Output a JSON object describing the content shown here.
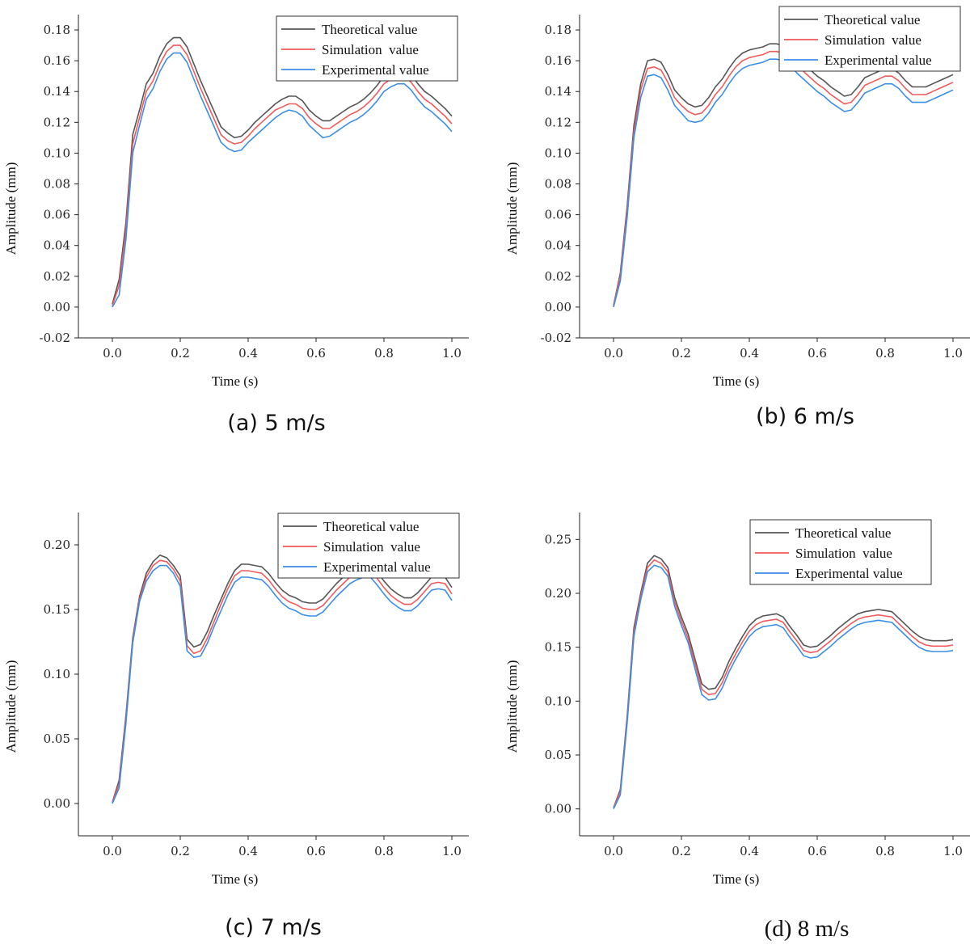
{
  "colors": {
    "theoretical": "#555555",
    "simulation": "#f05a5a",
    "experimental": "#3a8ee6"
  },
  "chart_data": [
    {
      "type": "line",
      "caption": "(a) 5 m/s",
      "xlabel": "Time (s)",
      "ylabel": "Amplitude (mm)",
      "xlim": [
        -0.1,
        1.05
      ],
      "ylim": [
        -0.02,
        0.19
      ],
      "xticks": [
        0.0,
        0.2,
        0.4,
        0.6,
        0.8,
        1.0
      ],
      "xtick_labels": [
        "0.0",
        "0.2",
        "0.4",
        "0.6",
        "0.8",
        "1.0"
      ],
      "yticks": [
        -0.02,
        0.0,
        0.02,
        0.04,
        0.06,
        0.08,
        0.1,
        0.12,
        0.14,
        0.16,
        0.18
      ],
      "ytick_labels": [
        "-0.02",
        "0.00",
        "0.02",
        "0.04",
        "0.06",
        "0.08",
        "0.10",
        "0.12",
        "0.14",
        "0.16",
        "0.18"
      ],
      "legend": "top-right",
      "x": [
        0.0,
        0.02,
        0.04,
        0.06,
        0.08,
        0.1,
        0.12,
        0.14,
        0.16,
        0.18,
        0.2,
        0.22,
        0.24,
        0.26,
        0.28,
        0.3,
        0.32,
        0.34,
        0.36,
        0.38,
        0.4,
        0.42,
        0.44,
        0.46,
        0.48,
        0.5,
        0.52,
        0.54,
        0.56,
        0.58,
        0.6,
        0.62,
        0.64,
        0.66,
        0.68,
        0.7,
        0.72,
        0.74,
        0.76,
        0.78,
        0.8,
        0.82,
        0.84,
        0.86,
        0.88,
        0.9,
        0.92,
        0.94,
        0.96,
        0.98,
        1.0
      ],
      "series": [
        {
          "name": "Theoretical value",
          "values": [
            0.002,
            0.018,
            0.055,
            0.112,
            0.128,
            0.145,
            0.152,
            0.163,
            0.171,
            0.175,
            0.175,
            0.169,
            0.158,
            0.147,
            0.137,
            0.127,
            0.117,
            0.113,
            0.11,
            0.111,
            0.115,
            0.12,
            0.124,
            0.128,
            0.132,
            0.135,
            0.137,
            0.137,
            0.134,
            0.128,
            0.124,
            0.121,
            0.121,
            0.124,
            0.127,
            0.13,
            0.132,
            0.135,
            0.139,
            0.144,
            0.15,
            0.153,
            0.155,
            0.155,
            0.151,
            0.145,
            0.14,
            0.137,
            0.133,
            0.129,
            0.124
          ]
        },
        {
          "name": "Simulation  value",
          "values": [
            0.001,
            0.014,
            0.05,
            0.106,
            0.123,
            0.14,
            0.147,
            0.158,
            0.166,
            0.17,
            0.17,
            0.164,
            0.153,
            0.142,
            0.132,
            0.122,
            0.112,
            0.108,
            0.106,
            0.107,
            0.111,
            0.116,
            0.12,
            0.124,
            0.128,
            0.13,
            0.132,
            0.132,
            0.129,
            0.123,
            0.119,
            0.116,
            0.116,
            0.119,
            0.122,
            0.125,
            0.127,
            0.13,
            0.134,
            0.139,
            0.145,
            0.148,
            0.15,
            0.15,
            0.146,
            0.14,
            0.135,
            0.132,
            0.128,
            0.124,
            0.119
          ]
        },
        {
          "name": "Experimental value",
          "values": [
            0.0,
            0.008,
            0.044,
            0.1,
            0.118,
            0.135,
            0.142,
            0.153,
            0.161,
            0.165,
            0.165,
            0.159,
            0.148,
            0.137,
            0.127,
            0.117,
            0.107,
            0.103,
            0.101,
            0.102,
            0.107,
            0.111,
            0.115,
            0.119,
            0.123,
            0.126,
            0.128,
            0.127,
            0.124,
            0.118,
            0.114,
            0.11,
            0.111,
            0.114,
            0.117,
            0.12,
            0.122,
            0.125,
            0.129,
            0.134,
            0.14,
            0.143,
            0.145,
            0.145,
            0.141,
            0.135,
            0.13,
            0.127,
            0.123,
            0.119,
            0.114
          ]
        }
      ]
    },
    {
      "type": "line",
      "caption": "(b) 6 m/s",
      "xlabel": "Time (s)",
      "ylabel": "Amplitude (mm)",
      "xlim": [
        -0.1,
        1.05
      ],
      "ylim": [
        -0.02,
        0.19
      ],
      "xticks": [
        0.0,
        0.2,
        0.4,
        0.6,
        0.8,
        1.0
      ],
      "xtick_labels": [
        "0.0",
        "0.2",
        "0.4",
        "0.6",
        "0.8",
        "1.0"
      ],
      "yticks": [
        -0.02,
        0.0,
        0.02,
        0.04,
        0.06,
        0.08,
        0.1,
        0.12,
        0.14,
        0.16,
        0.18
      ],
      "ytick_labels": [
        "-0.02",
        "0.00",
        "0.02",
        "0.04",
        "0.06",
        "0.08",
        "0.10",
        "0.12",
        "0.14",
        "0.16",
        "0.18"
      ],
      "legend": "top-right",
      "x": [
        0.0,
        0.02,
        0.04,
        0.06,
        0.08,
        0.1,
        0.12,
        0.14,
        0.16,
        0.18,
        0.2,
        0.22,
        0.24,
        0.26,
        0.28,
        0.3,
        0.32,
        0.34,
        0.36,
        0.38,
        0.4,
        0.42,
        0.44,
        0.46,
        0.48,
        0.5,
        0.52,
        0.54,
        0.56,
        0.58,
        0.6,
        0.62,
        0.64,
        0.66,
        0.68,
        0.7,
        0.72,
        0.74,
        0.76,
        0.78,
        0.8,
        0.82,
        0.84,
        0.86,
        0.88,
        0.9,
        0.92,
        0.94,
        0.96,
        0.98,
        1.0
      ],
      "series": [
        {
          "name": "Theoretical value",
          "values": [
            0.001,
            0.022,
            0.065,
            0.118,
            0.145,
            0.16,
            0.161,
            0.159,
            0.151,
            0.141,
            0.136,
            0.132,
            0.13,
            0.131,
            0.136,
            0.143,
            0.148,
            0.155,
            0.161,
            0.165,
            0.167,
            0.168,
            0.169,
            0.171,
            0.171,
            0.17,
            0.167,
            0.162,
            0.158,
            0.154,
            0.15,
            0.147,
            0.143,
            0.14,
            0.137,
            0.138,
            0.143,
            0.149,
            0.151,
            0.153,
            0.155,
            0.155,
            0.152,
            0.147,
            0.143,
            0.143,
            0.143,
            0.145,
            0.147,
            0.149,
            0.151
          ]
        },
        {
          "name": "Simulation  value",
          "values": [
            0.001,
            0.02,
            0.062,
            0.114,
            0.141,
            0.155,
            0.156,
            0.154,
            0.146,
            0.136,
            0.131,
            0.127,
            0.125,
            0.126,
            0.131,
            0.138,
            0.143,
            0.15,
            0.156,
            0.16,
            0.162,
            0.163,
            0.164,
            0.166,
            0.166,
            0.165,
            0.162,
            0.157,
            0.153,
            0.149,
            0.145,
            0.142,
            0.138,
            0.135,
            0.132,
            0.133,
            0.138,
            0.144,
            0.146,
            0.148,
            0.15,
            0.15,
            0.147,
            0.142,
            0.138,
            0.138,
            0.138,
            0.14,
            0.142,
            0.144,
            0.146
          ]
        },
        {
          "name": "Experimental value",
          "values": [
            0.0,
            0.017,
            0.058,
            0.11,
            0.136,
            0.15,
            0.151,
            0.149,
            0.141,
            0.131,
            0.126,
            0.121,
            0.12,
            0.121,
            0.126,
            0.133,
            0.138,
            0.145,
            0.151,
            0.155,
            0.157,
            0.158,
            0.159,
            0.161,
            0.161,
            0.16,
            0.157,
            0.152,
            0.148,
            0.144,
            0.14,
            0.137,
            0.133,
            0.13,
            0.127,
            0.128,
            0.133,
            0.139,
            0.141,
            0.143,
            0.145,
            0.145,
            0.142,
            0.137,
            0.133,
            0.133,
            0.133,
            0.135,
            0.137,
            0.139,
            0.141
          ]
        }
      ]
    },
    {
      "type": "line",
      "caption": "(c) 7 m/s",
      "xlabel": "Time (s)",
      "ylabel": "Amplitude (mm)",
      "xlim": [
        -0.1,
        1.05
      ],
      "ylim": [
        -0.025,
        0.225
      ],
      "xticks": [
        0.0,
        0.2,
        0.4,
        0.6,
        0.8,
        1.0
      ],
      "xtick_labels": [
        "0.0",
        "0.2",
        "0.4",
        "0.6",
        "0.8",
        "1.0"
      ],
      "yticks": [
        0.0,
        0.05,
        0.1,
        0.15,
        0.2
      ],
      "ytick_labels": [
        "0.00",
        "0.05",
        "0.10",
        "0.15",
        "0.20"
      ],
      "legend": "top-right",
      "x": [
        0.0,
        0.02,
        0.04,
        0.06,
        0.08,
        0.1,
        0.12,
        0.14,
        0.16,
        0.18,
        0.2,
        0.22,
        0.24,
        0.26,
        0.28,
        0.3,
        0.32,
        0.34,
        0.36,
        0.38,
        0.4,
        0.42,
        0.44,
        0.46,
        0.48,
        0.5,
        0.52,
        0.54,
        0.56,
        0.58,
        0.6,
        0.62,
        0.64,
        0.66,
        0.68,
        0.7,
        0.72,
        0.74,
        0.76,
        0.78,
        0.8,
        0.82,
        0.84,
        0.86,
        0.88,
        0.9,
        0.92,
        0.94,
        0.96,
        0.98,
        1.0
      ],
      "series": [
        {
          "name": "Theoretical value",
          "values": [
            0.001,
            0.018,
            0.068,
            0.128,
            0.16,
            0.178,
            0.187,
            0.192,
            0.19,
            0.184,
            0.176,
            0.127,
            0.121,
            0.123,
            0.133,
            0.146,
            0.158,
            0.17,
            0.18,
            0.185,
            0.185,
            0.184,
            0.183,
            0.178,
            0.171,
            0.165,
            0.161,
            0.159,
            0.156,
            0.155,
            0.155,
            0.158,
            0.164,
            0.17,
            0.175,
            0.18,
            0.183,
            0.186,
            0.185,
            0.179,
            0.172,
            0.166,
            0.162,
            0.159,
            0.159,
            0.163,
            0.169,
            0.175,
            0.176,
            0.175,
            0.167
          ]
        },
        {
          "name": "Simulation  value",
          "values": [
            0.001,
            0.015,
            0.065,
            0.126,
            0.158,
            0.175,
            0.184,
            0.188,
            0.187,
            0.181,
            0.172,
            0.122,
            0.116,
            0.118,
            0.128,
            0.141,
            0.154,
            0.166,
            0.176,
            0.18,
            0.18,
            0.179,
            0.178,
            0.173,
            0.166,
            0.16,
            0.156,
            0.154,
            0.151,
            0.15,
            0.15,
            0.153,
            0.159,
            0.165,
            0.17,
            0.175,
            0.178,
            0.18,
            0.18,
            0.174,
            0.167,
            0.161,
            0.157,
            0.154,
            0.154,
            0.158,
            0.164,
            0.17,
            0.171,
            0.17,
            0.162
          ]
        },
        {
          "name": "Experimental value",
          "values": [
            0.0,
            0.012,
            0.062,
            0.124,
            0.156,
            0.172,
            0.18,
            0.184,
            0.184,
            0.178,
            0.168,
            0.118,
            0.113,
            0.114,
            0.124,
            0.137,
            0.149,
            0.161,
            0.171,
            0.175,
            0.175,
            0.174,
            0.173,
            0.168,
            0.161,
            0.155,
            0.151,
            0.149,
            0.146,
            0.145,
            0.145,
            0.148,
            0.154,
            0.16,
            0.165,
            0.17,
            0.173,
            0.175,
            0.175,
            0.169,
            0.162,
            0.156,
            0.152,
            0.149,
            0.149,
            0.153,
            0.159,
            0.165,
            0.166,
            0.165,
            0.157
          ]
        }
      ]
    },
    {
      "type": "line",
      "caption": "(d) 8 m/s",
      "xlabel": "Time (s)",
      "ylabel": "Amplitude (mm)",
      "xlim": [
        -0.1,
        1.05
      ],
      "ylim": [
        -0.025,
        0.275
      ],
      "xticks": [
        0.0,
        0.2,
        0.4,
        0.6,
        0.8,
        1.0
      ],
      "xtick_labels": [
        "0.0",
        "0.2",
        "0.4",
        "0.6",
        "0.8",
        "1.0"
      ],
      "yticks": [
        0.0,
        0.05,
        0.1,
        0.15,
        0.2,
        0.25
      ],
      "ytick_labels": [
        "0.00",
        "0.05",
        "0.10",
        "0.15",
        "0.20",
        "0.25"
      ],
      "legend": "top-right",
      "x": [
        0.0,
        0.02,
        0.04,
        0.06,
        0.08,
        0.1,
        0.12,
        0.14,
        0.16,
        0.18,
        0.2,
        0.22,
        0.24,
        0.26,
        0.28,
        0.3,
        0.32,
        0.34,
        0.36,
        0.38,
        0.4,
        0.42,
        0.44,
        0.46,
        0.48,
        0.5,
        0.52,
        0.54,
        0.56,
        0.58,
        0.6,
        0.62,
        0.64,
        0.66,
        0.68,
        0.7,
        0.72,
        0.74,
        0.76,
        0.78,
        0.8,
        0.82,
        0.84,
        0.86,
        0.88,
        0.9,
        0.92,
        0.94,
        0.96,
        0.98,
        1.0
      ],
      "series": [
        {
          "name": "Theoretical value",
          "values": [
            0.001,
            0.018,
            0.085,
            0.168,
            0.2,
            0.228,
            0.235,
            0.232,
            0.224,
            0.196,
            0.178,
            0.162,
            0.139,
            0.116,
            0.111,
            0.112,
            0.122,
            0.137,
            0.149,
            0.16,
            0.17,
            0.176,
            0.179,
            0.18,
            0.181,
            0.178,
            0.169,
            0.161,
            0.152,
            0.15,
            0.151,
            0.156,
            0.161,
            0.167,
            0.172,
            0.177,
            0.181,
            0.183,
            0.184,
            0.185,
            0.184,
            0.183,
            0.177,
            0.171,
            0.165,
            0.16,
            0.157,
            0.156,
            0.156,
            0.156,
            0.157
          ]
        },
        {
          "name": "Simulation  value",
          "values": [
            0.001,
            0.016,
            0.082,
            0.164,
            0.197,
            0.224,
            0.231,
            0.228,
            0.22,
            0.192,
            0.174,
            0.158,
            0.135,
            0.111,
            0.106,
            0.107,
            0.117,
            0.132,
            0.144,
            0.155,
            0.165,
            0.171,
            0.174,
            0.175,
            0.176,
            0.173,
            0.164,
            0.156,
            0.147,
            0.145,
            0.146,
            0.151,
            0.156,
            0.162,
            0.167,
            0.172,
            0.176,
            0.178,
            0.179,
            0.18,
            0.179,
            0.178,
            0.172,
            0.166,
            0.16,
            0.155,
            0.152,
            0.151,
            0.151,
            0.151,
            0.152
          ]
        },
        {
          "name": "Experimental value",
          "values": [
            0.0,
            0.013,
            0.079,
            0.16,
            0.194,
            0.22,
            0.226,
            0.224,
            0.216,
            0.188,
            0.17,
            0.154,
            0.13,
            0.106,
            0.101,
            0.102,
            0.112,
            0.127,
            0.139,
            0.15,
            0.16,
            0.166,
            0.169,
            0.17,
            0.171,
            0.168,
            0.159,
            0.151,
            0.142,
            0.14,
            0.141,
            0.146,
            0.151,
            0.157,
            0.162,
            0.167,
            0.171,
            0.173,
            0.174,
            0.175,
            0.174,
            0.173,
            0.167,
            0.161,
            0.155,
            0.15,
            0.147,
            0.146,
            0.146,
            0.146,
            0.147
          ]
        }
      ]
    }
  ]
}
